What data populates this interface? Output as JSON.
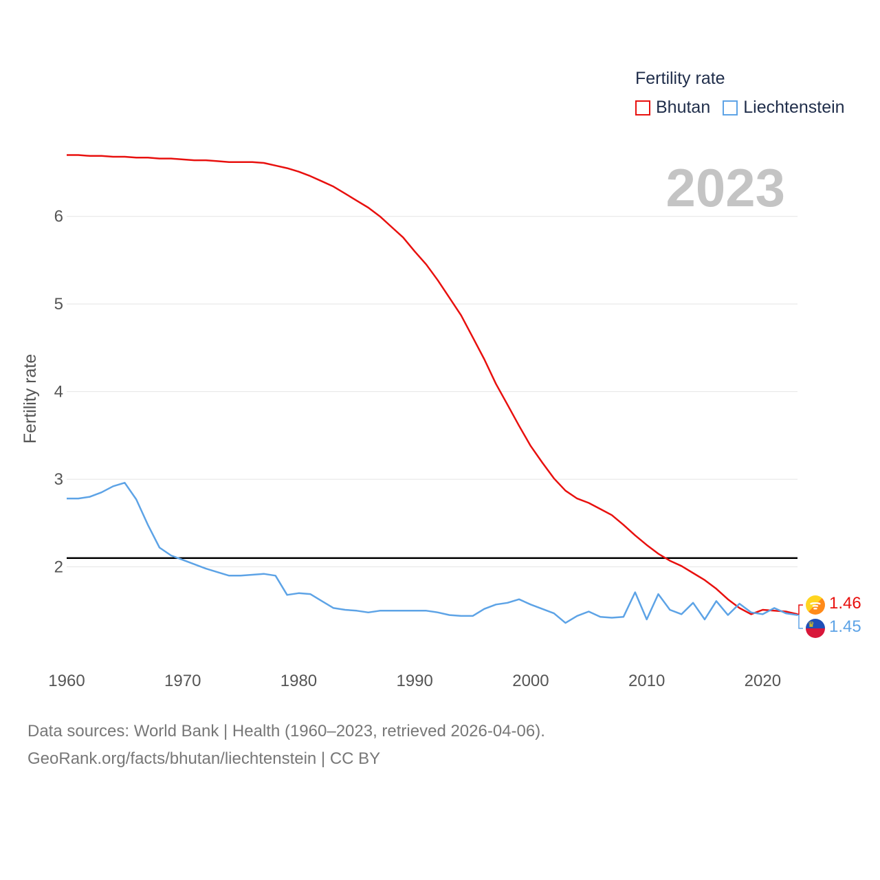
{
  "chart_data": {
    "type": "line",
    "ylabel": "Fertility rate",
    "xlim": [
      1960,
      2023
    ],
    "ylim": [
      1.0,
      6.9
    ],
    "yticks": [
      2,
      3,
      4,
      5,
      6
    ],
    "xticks": [
      1960,
      1970,
      1980,
      1990,
      2000,
      2010,
      2020
    ],
    "reference_line": 2.1,
    "legend_title": "Fertility rate",
    "year_label": "2023",
    "years": [
      1960,
      1961,
      1962,
      1963,
      1964,
      1965,
      1966,
      1967,
      1968,
      1969,
      1970,
      1971,
      1972,
      1973,
      1974,
      1975,
      1976,
      1977,
      1978,
      1979,
      1980,
      1981,
      1982,
      1983,
      1984,
      1985,
      1986,
      1987,
      1988,
      1989,
      1990,
      1991,
      1992,
      1993,
      1994,
      1995,
      1996,
      1997,
      1998,
      1999,
      2000,
      2001,
      2002,
      2003,
      2004,
      2005,
      2006,
      2007,
      2008,
      2009,
      2010,
      2011,
      2012,
      2013,
      2014,
      2015,
      2016,
      2017,
      2018,
      2019,
      2020,
      2021,
      2022,
      2023
    ],
    "series": [
      {
        "name": "Bhutan",
        "color": "#e8100e",
        "end_label": "1.46",
        "values": [
          6.7,
          6.7,
          6.69,
          6.69,
          6.68,
          6.68,
          6.67,
          6.67,
          6.66,
          6.66,
          6.65,
          6.64,
          6.64,
          6.63,
          6.62,
          6.62,
          6.62,
          6.61,
          6.58,
          6.55,
          6.51,
          6.46,
          6.4,
          6.34,
          6.26,
          6.18,
          6.1,
          6.0,
          5.88,
          5.76,
          5.6,
          5.45,
          5.27,
          5.07,
          4.87,
          4.62,
          4.37,
          4.09,
          3.85,
          3.61,
          3.38,
          3.19,
          3.01,
          2.87,
          2.78,
          2.73,
          2.66,
          2.59,
          2.48,
          2.36,
          2.25,
          2.15,
          2.07,
          2.01,
          1.93,
          1.85,
          1.75,
          1.63,
          1.53,
          1.46,
          1.51,
          1.5,
          1.49,
          1.46
        ]
      },
      {
        "name": "Liechtenstein",
        "color": "#5da3e6",
        "end_label": "1.45",
        "values": [
          2.78,
          2.78,
          2.8,
          2.85,
          2.92,
          2.96,
          2.77,
          2.48,
          2.22,
          2.13,
          2.08,
          2.03,
          1.98,
          1.94,
          1.9,
          1.9,
          1.91,
          1.92,
          1.9,
          1.68,
          1.7,
          1.69,
          1.61,
          1.53,
          1.51,
          1.5,
          1.48,
          1.5,
          1.5,
          1.5,
          1.5,
          1.5,
          1.48,
          1.45,
          1.44,
          1.44,
          1.52,
          1.57,
          1.59,
          1.63,
          1.57,
          1.52,
          1.47,
          1.36,
          1.44,
          1.49,
          1.43,
          1.42,
          1.43,
          1.71,
          1.4,
          1.69,
          1.51,
          1.46,
          1.59,
          1.4,
          1.61,
          1.45,
          1.58,
          1.48,
          1.46,
          1.53,
          1.47,
          1.45
        ]
      }
    ]
  },
  "footer": {
    "line1": "Data sources: World Bank | Health (1960–2023, retrieved 2026-04-06).",
    "line2": "GeoRank.org/facts/bhutan/liechtenstein | CC BY"
  }
}
